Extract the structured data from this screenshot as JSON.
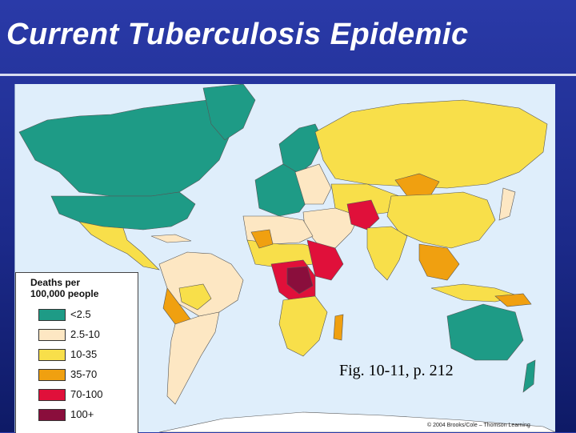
{
  "slide": {
    "title": "Current Tuberculosis Epidemic"
  },
  "legend": {
    "title_line1": "Deaths per",
    "title_line2": "100,000 people",
    "items": [
      {
        "label": "<2.5",
        "color": "#1e9b86"
      },
      {
        "label": "2.5-10",
        "color": "#fde7c3"
      },
      {
        "label": "10-35",
        "color": "#f8df4a"
      },
      {
        "label": "35-70",
        "color": "#f0a010"
      },
      {
        "label": "70-100",
        "color": "#e0103a"
      },
      {
        "label": "100+",
        "color": "#8a0e3c"
      }
    ]
  },
  "caption": {
    "figure": "Fig. 10-11, p. 212",
    "credit": "© 2004 Brooks/Cole – Thomson Learning"
  },
  "colors": {
    "ocean": "#dfeefb",
    "slide_background": "#1c2a8a",
    "title_text": "#ffffff"
  }
}
